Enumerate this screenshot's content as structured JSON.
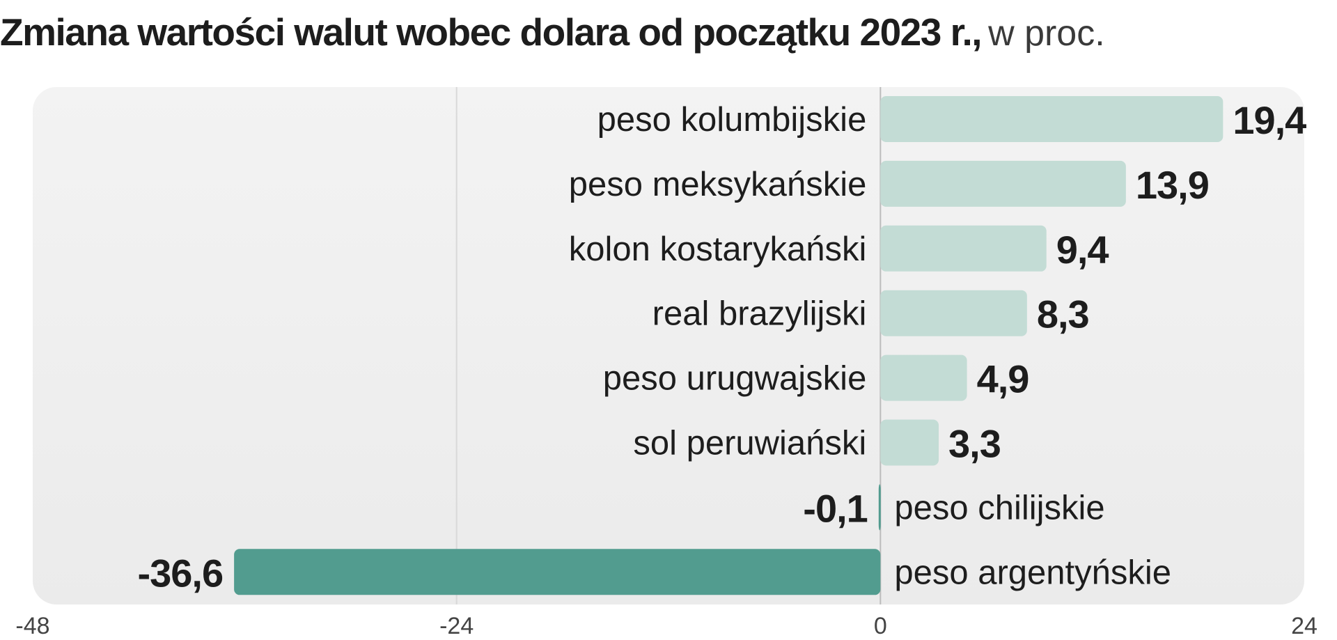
{
  "chart_data": {
    "type": "bar",
    "orientation": "horizontal",
    "title": "Zmiana wartości walut wobec dolara od początku 2023 r.,",
    "title_unit": "w proc.",
    "categories": [
      "peso kolumbijskie",
      "peso meksykańskie",
      "kolon kostarykański",
      "real brazylijski",
      "peso urugwajskie",
      "sol peruwiański",
      "peso chilijskie",
      "peso argentyńskie"
    ],
    "values": [
      19.4,
      13.9,
      9.4,
      8.3,
      4.9,
      3.3,
      -0.1,
      -36.6
    ],
    "value_labels": [
      "19,4",
      "13,9",
      "9,4",
      "8,3",
      "4,9",
      "3,3",
      "-0,1",
      "-36,6"
    ],
    "xlim": [
      -48,
      24
    ],
    "x_ticks": [
      -48,
      -24,
      0,
      24
    ],
    "x_tick_labels": [
      "-48",
      "-24",
      "0",
      "24"
    ],
    "grid": true,
    "xlabel": "",
    "ylabel": "",
    "colors": {
      "positive_bar": "#c3dcd5",
      "negative_bar": "#529c8f",
      "plot_background": "#f0f0f0",
      "gridline": "#d9d9d9",
      "zero_line": "#bcbcbc"
    }
  }
}
